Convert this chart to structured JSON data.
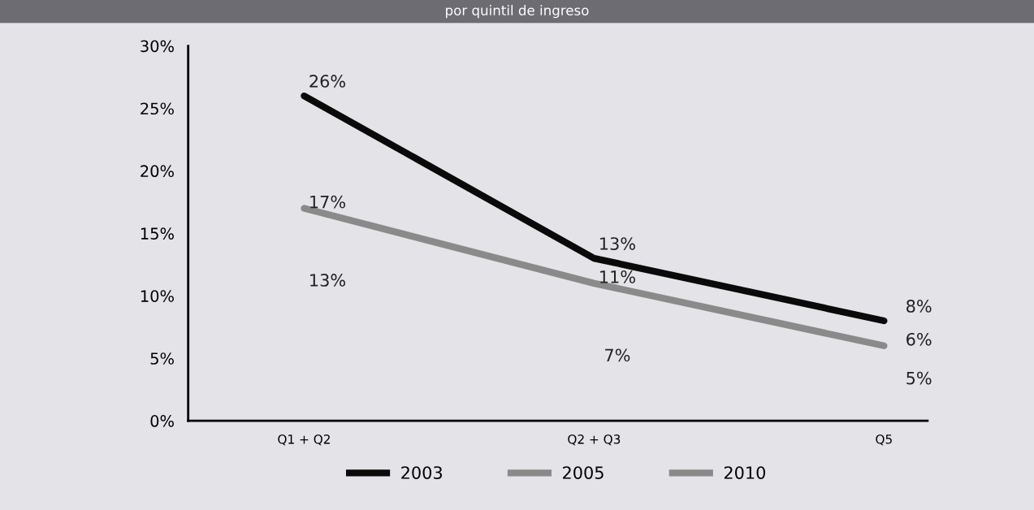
{
  "chart_data": {
    "type": "line",
    "title": "por quintil de ingreso",
    "categories": [
      "Q1 + Q2",
      "Q2 + Q3",
      "Q5"
    ],
    "series": [
      {
        "name": "2003",
        "color": "#0a0a0a",
        "values": [
          26,
          13,
          8
        ],
        "value_labels": [
          "26%",
          "13%",
          "8%"
        ]
      },
      {
        "name": "2005",
        "color": "#8a8a8a",
        "values": [
          17,
          11,
          6
        ],
        "value_labels": [
          "17%",
          "11%",
          "6%"
        ]
      },
      {
        "name": "2010",
        "color": "#8a8a8a",
        "values": [
          null,
          null,
          null
        ]
      }
    ],
    "annotations": [
      "13%",
      "7%",
      "5%"
    ],
    "ylim": [
      0,
      30
    ],
    "yticks": [
      {
        "value": 0,
        "label": "0%"
      },
      {
        "value": 5,
        "label": "5%"
      },
      {
        "value": 10,
        "label": "10%"
      },
      {
        "value": 15,
        "label": "15%"
      },
      {
        "value": 20,
        "label": "20%"
      },
      {
        "value": 25,
        "label": "25%"
      },
      {
        "value": 30,
        "label": "30%"
      }
    ],
    "grid": false,
    "legend": "bottom",
    "marker": "none",
    "line_style": "solid"
  }
}
